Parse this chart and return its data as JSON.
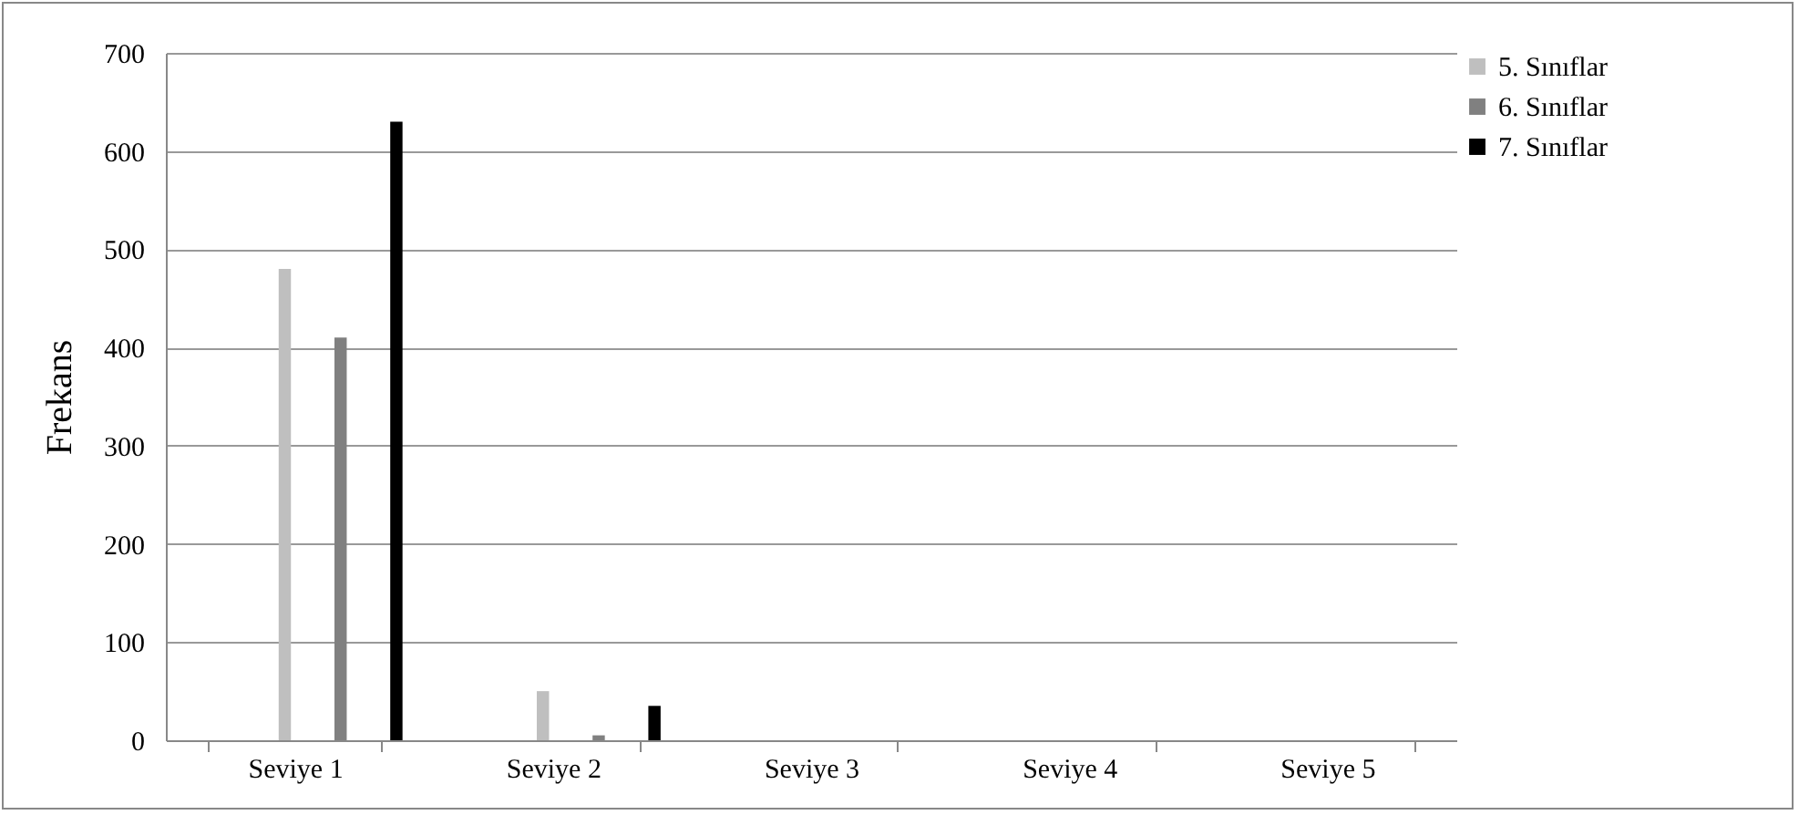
{
  "chart_data": {
    "type": "bar",
    "ylabel": "Frekans",
    "categories": [
      "Seviye 1",
      "Seviye 2",
      "Seviye 3",
      "Seviye 4",
      "Seviye 5"
    ],
    "series": [
      {
        "name": "5. Sınıflar",
        "color": "#bfbfbf",
        "values": [
          480,
          50,
          0,
          0,
          0
        ]
      },
      {
        "name": "6. Sınıflar",
        "color": "#808080",
        "values": [
          410,
          5,
          0,
          0,
          0
        ]
      },
      {
        "name": "7. Sınıflar",
        "color": "#000000",
        "values": [
          630,
          35,
          0,
          0,
          0
        ]
      }
    ],
    "ylim": [
      0,
      700
    ],
    "yticks": [
      0,
      100,
      200,
      300,
      400,
      500,
      600,
      700
    ],
    "grid": "y",
    "legend": "right"
  }
}
